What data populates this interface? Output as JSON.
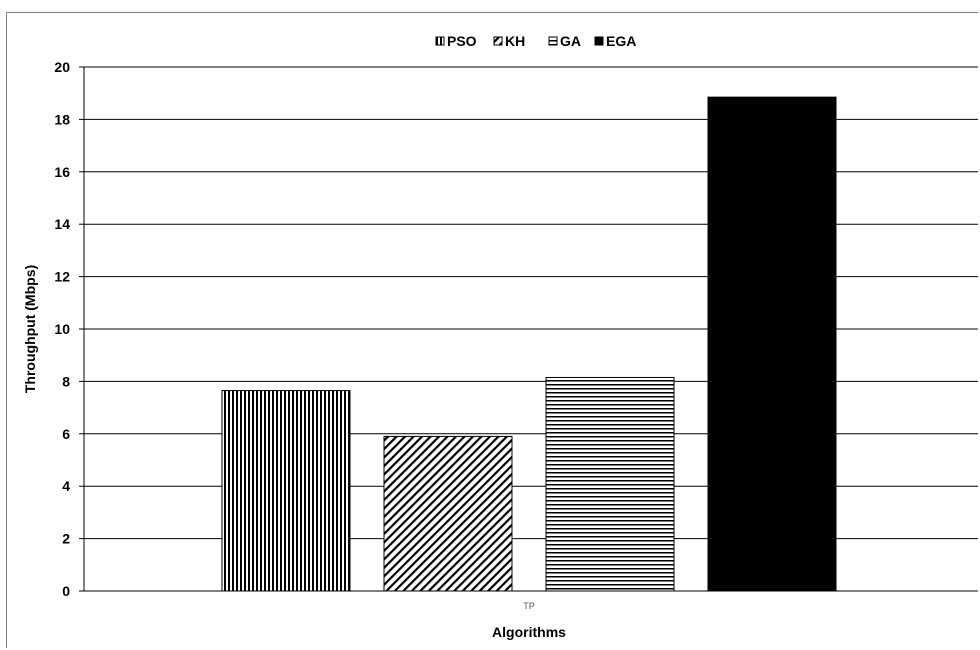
{
  "chart_data": {
    "type": "bar",
    "categories": [
      "TP"
    ],
    "series": [
      {
        "name": "PSO",
        "values": [
          7.65
        ],
        "pattern": "vertical-lines",
        "color": "#000000"
      },
      {
        "name": "KH",
        "values": [
          5.9
        ],
        "pattern": "diagonal-lines",
        "color": "#000000"
      },
      {
        "name": "GA",
        "values": [
          8.15
        ],
        "pattern": "horizontal-lines",
        "color": "#000000"
      },
      {
        "name": "EGA",
        "values": [
          18.85
        ],
        "pattern": "solid",
        "color": "#000000"
      }
    ],
    "xlabel": "Algorithms",
    "ylabel": "Throughput (Mbps)",
    "ylim": [
      0,
      20
    ],
    "yticks": [
      "0",
      "2",
      "4",
      "6",
      "8",
      "10",
      "12",
      "14",
      "16",
      "18",
      "20"
    ],
    "grid": true,
    "legend_position": "top-center"
  }
}
